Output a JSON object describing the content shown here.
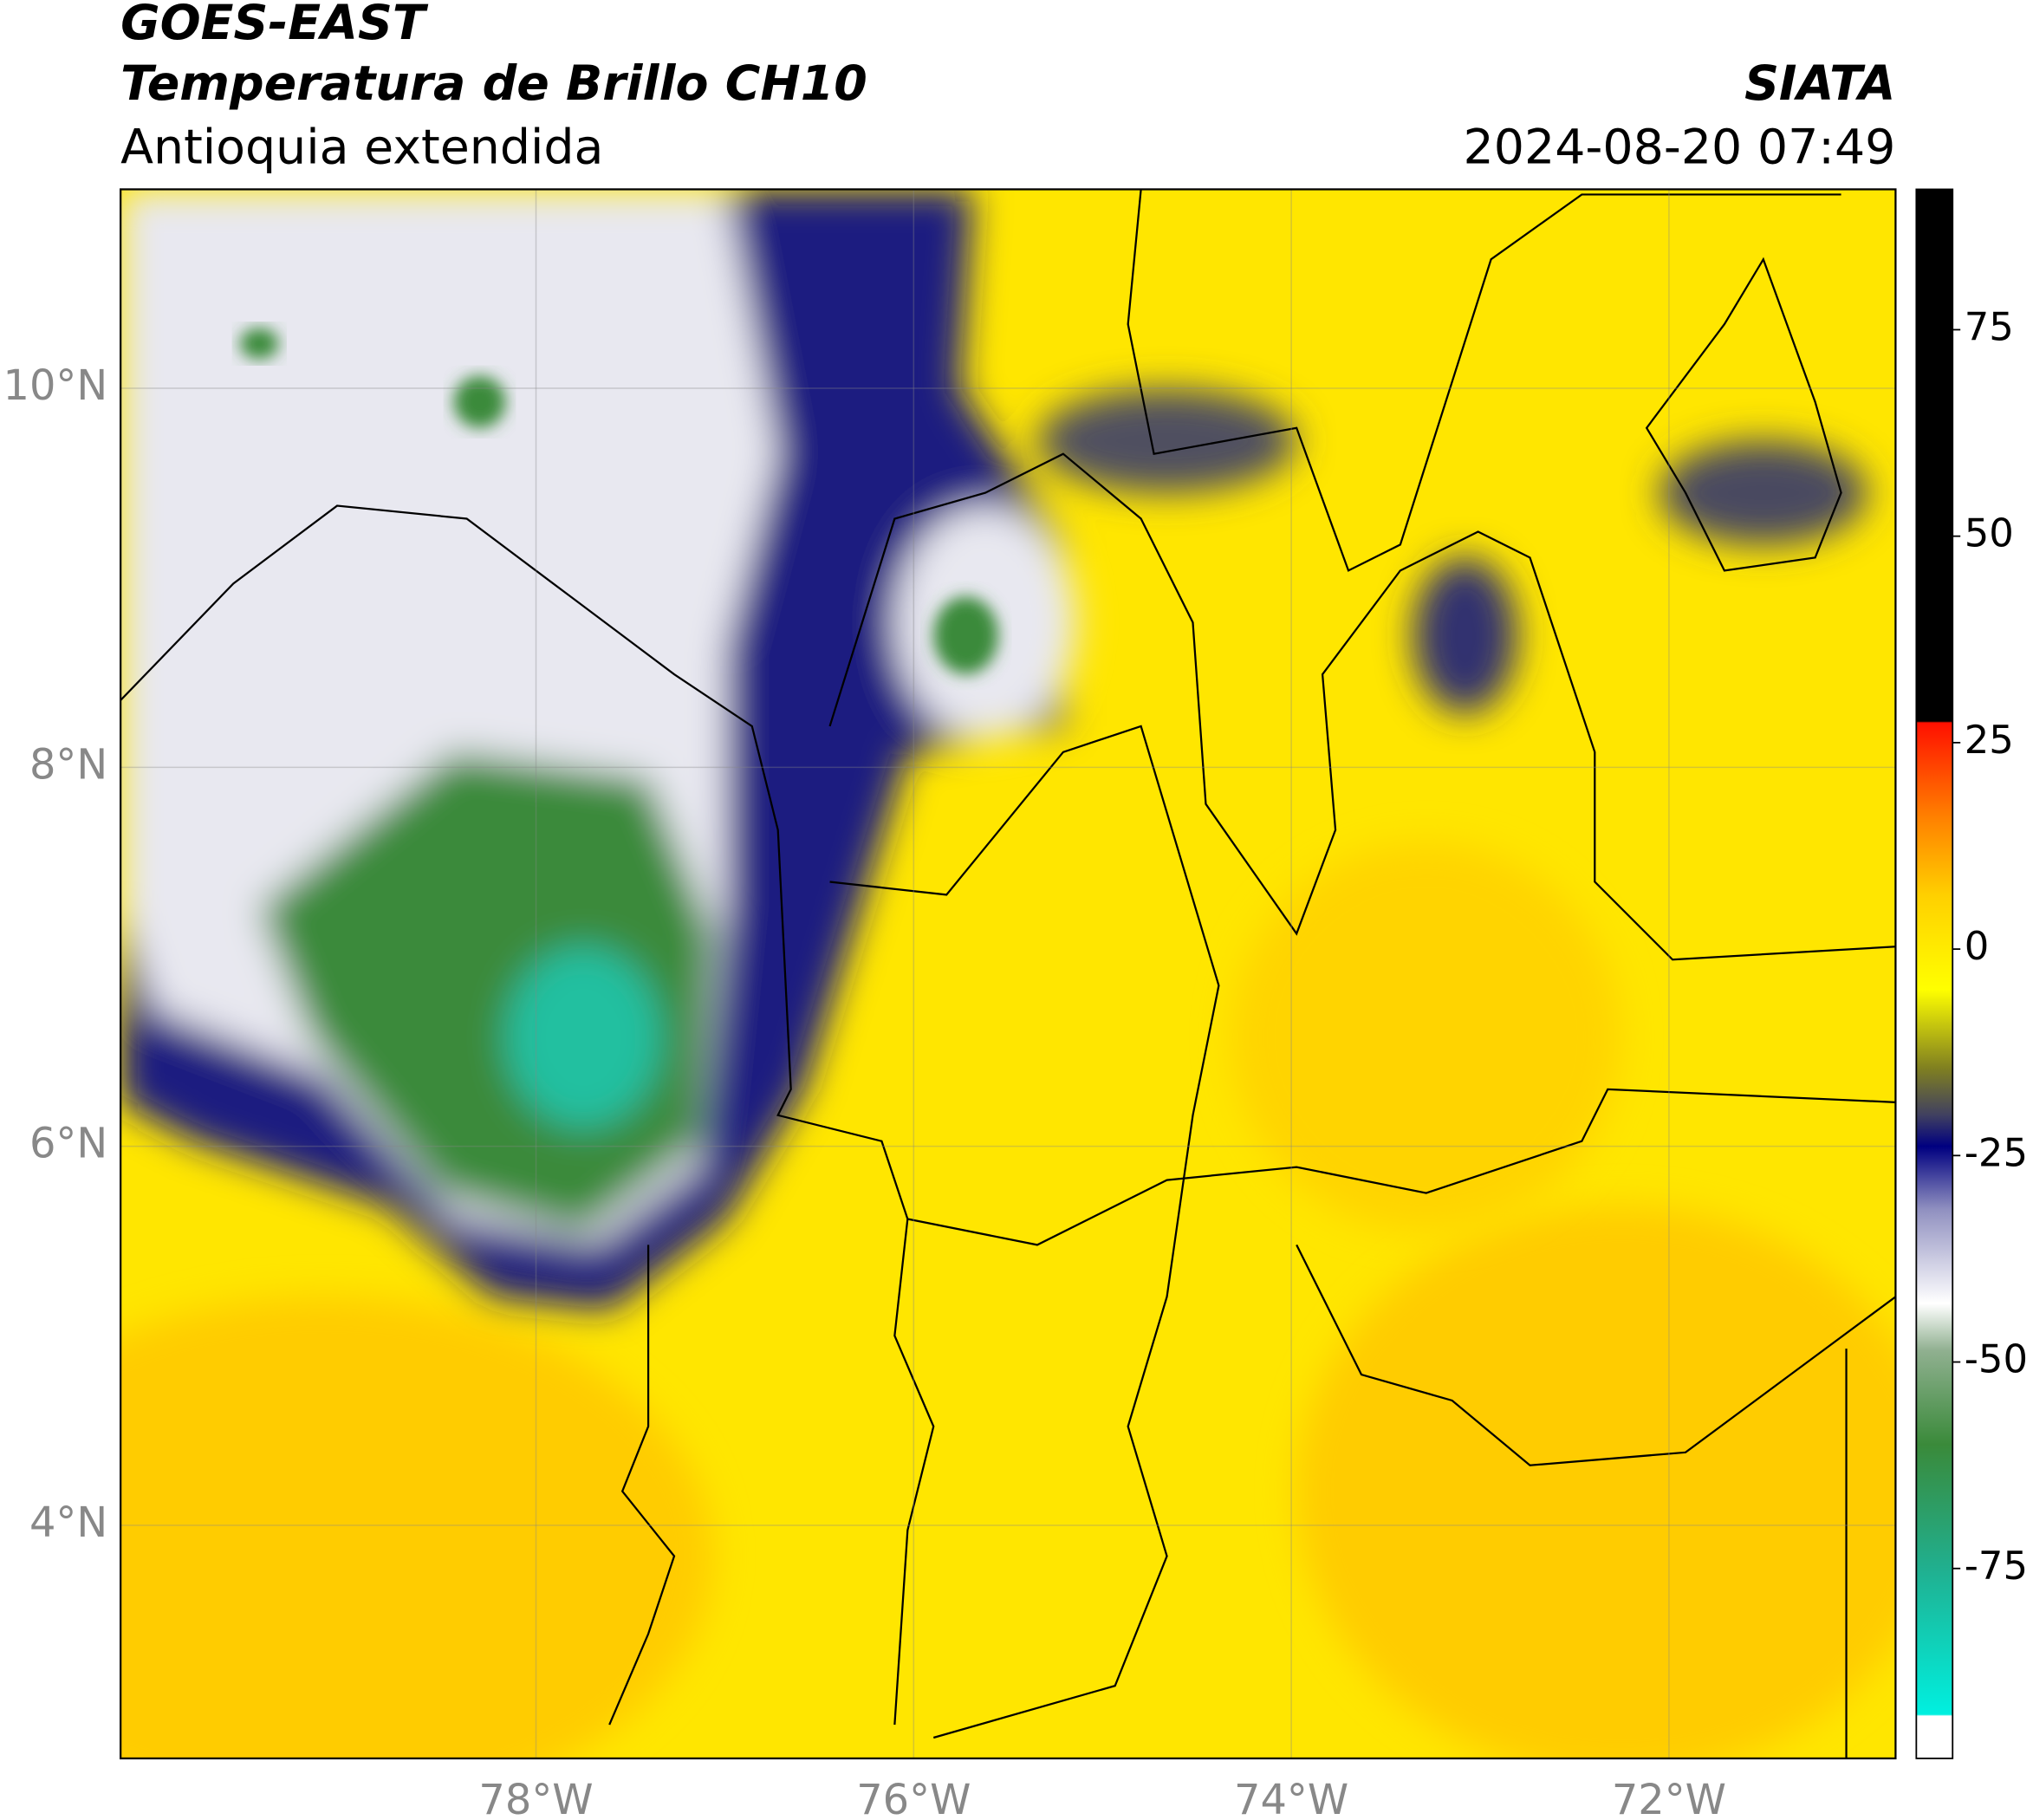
{
  "header": {
    "title": "GOES-EAST",
    "subtitle": "Temperatura de Brillo CH10",
    "region": "Antioquia extendida",
    "source": "SIATA",
    "timestamp": "2024-08-20 07:49"
  },
  "map": {
    "xlim": [
      -80.2,
      -70.8
    ],
    "ylim": [
      2.77,
      11.05
    ],
    "xticks": [
      {
        "value": -78,
        "label": "78°W"
      },
      {
        "value": -76,
        "label": "76°W"
      },
      {
        "value": -74,
        "label": "74°W"
      },
      {
        "value": -72,
        "label": "72°W"
      }
    ],
    "yticks": [
      {
        "value": 4,
        "label": "4°N"
      },
      {
        "value": 6,
        "label": "6°N"
      },
      {
        "value": 8,
        "label": "8°N"
      },
      {
        "value": 10,
        "label": "10°N"
      }
    ],
    "grid": true
  },
  "colorbar": {
    "clim": [
      -98,
      92
    ],
    "ticks": [
      -75,
      -50,
      -25,
      0,
      25,
      50,
      75
    ]
  }
}
